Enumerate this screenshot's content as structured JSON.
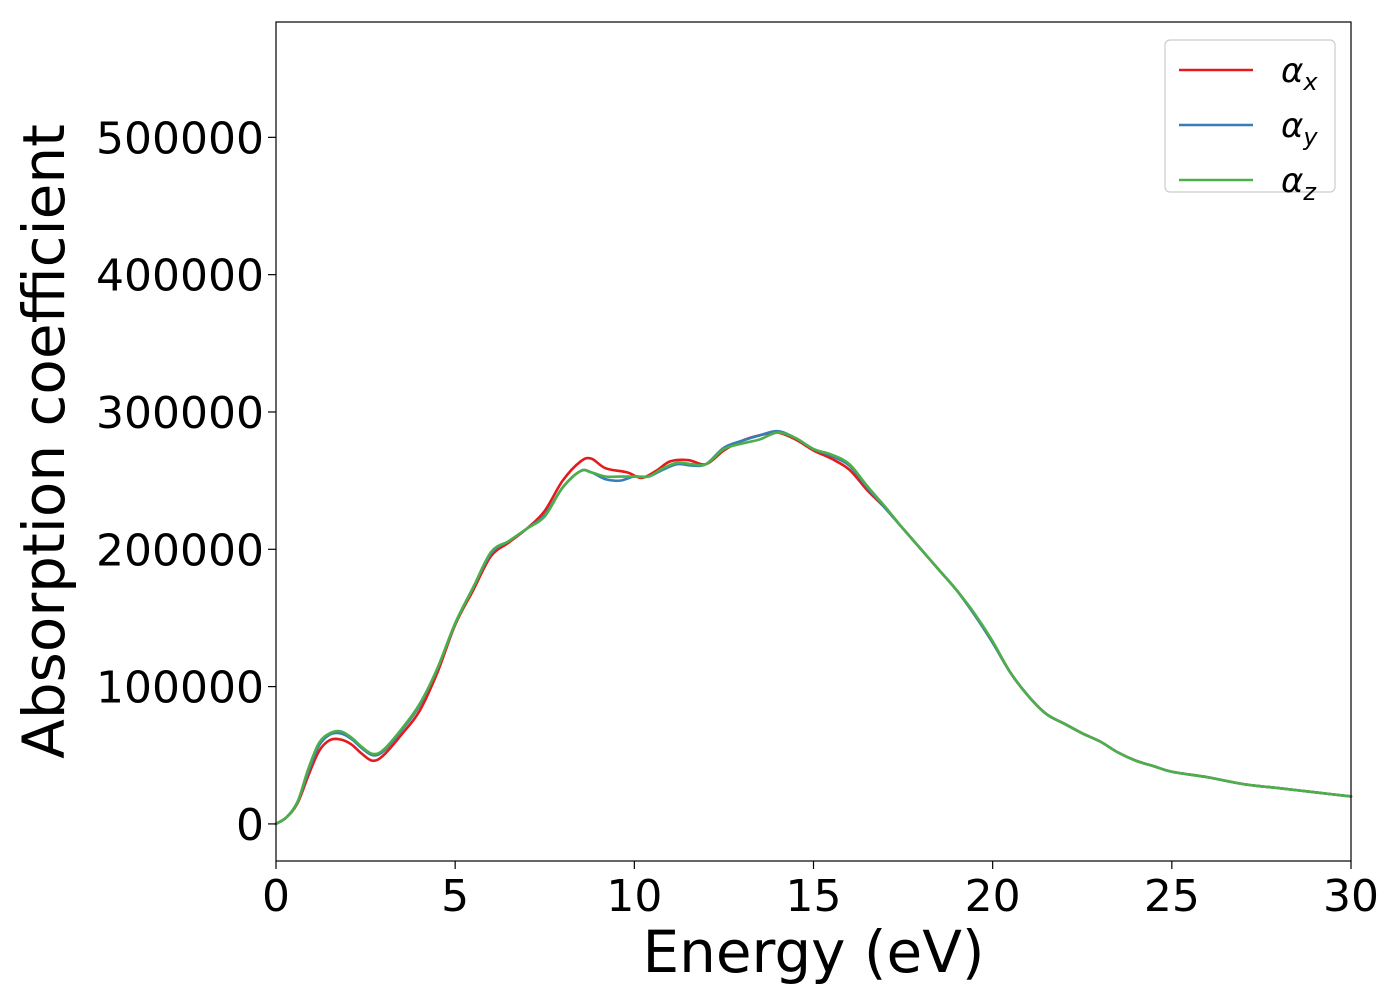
{
  "chart_data": {
    "type": "line",
    "title": "",
    "xlabel": "Energy (eV)",
    "ylabel": "Absorption coefficient",
    "xlim": [
      0,
      30
    ],
    "ylim": [
      -27000,
      584000
    ],
    "xticks": [
      0,
      5,
      10,
      15,
      20,
      25,
      30
    ],
    "yticks": [
      0,
      100000,
      200000,
      300000,
      400000,
      500000
    ],
    "xtick_labels": [
      "0",
      "5",
      "10",
      "15",
      "20",
      "25",
      "30"
    ],
    "ytick_labels": [
      "0",
      "100000",
      "200000",
      "300000",
      "400000",
      "500000"
    ],
    "grid": false,
    "legend_position": "top-right",
    "series": [
      {
        "name": "αx",
        "label_base": "α",
        "label_sub": "x",
        "color": "#e41a1c",
        "points": [
          [
            0,
            0
          ],
          [
            0.3,
            5000
          ],
          [
            0.6,
            15000
          ],
          [
            0.9,
            35000
          ],
          [
            1.2,
            53000
          ],
          [
            1.5,
            61000
          ],
          [
            1.8,
            61500
          ],
          [
            2.1,
            58000
          ],
          [
            2.4,
            51000
          ],
          [
            2.7,
            46000
          ],
          [
            3.0,
            50000
          ],
          [
            3.5,
            65000
          ],
          [
            4.0,
            82000
          ],
          [
            4.5,
            110000
          ],
          [
            5.0,
            145000
          ],
          [
            5.5,
            170000
          ],
          [
            6.0,
            195000
          ],
          [
            6.5,
            205000
          ],
          [
            7.0,
            215000
          ],
          [
            7.5,
            228000
          ],
          [
            8.0,
            250000
          ],
          [
            8.5,
            264000
          ],
          [
            8.8,
            266000
          ],
          [
            9.2,
            259000
          ],
          [
            9.8,
            256000
          ],
          [
            10.2,
            252000
          ],
          [
            10.6,
            257000
          ],
          [
            11.0,
            264000
          ],
          [
            11.5,
            265000
          ],
          [
            12.0,
            262000
          ],
          [
            12.5,
            272000
          ],
          [
            13.0,
            279000
          ],
          [
            13.5,
            283000
          ],
          [
            14.0,
            285000
          ],
          [
            14.5,
            280000
          ],
          [
            15.0,
            272000
          ],
          [
            15.5,
            266000
          ],
          [
            16.0,
            258000
          ],
          [
            16.5,
            243000
          ],
          [
            17.0,
            230000
          ],
          [
            17.5,
            215000
          ],
          [
            18.0,
            200000
          ],
          [
            18.5,
            185000
          ],
          [
            19.0,
            170000
          ],
          [
            19.5,
            152000
          ],
          [
            20.0,
            132000
          ],
          [
            20.5,
            110000
          ],
          [
            21.0,
            93000
          ],
          [
            21.5,
            80000
          ],
          [
            22.0,
            73000
          ],
          [
            22.5,
            66000
          ],
          [
            23.0,
            60000
          ],
          [
            23.5,
            52000
          ],
          [
            24.0,
            46000
          ],
          [
            24.5,
            42000
          ],
          [
            25.0,
            38000
          ],
          [
            26.0,
            34000
          ],
          [
            27.0,
            29000
          ],
          [
            28.0,
            26000
          ],
          [
            29.0,
            23000
          ],
          [
            30.0,
            20000
          ]
        ]
      },
      {
        "name": "αy",
        "label_base": "α",
        "label_sub": "y",
        "color": "#377eb8",
        "points": [
          [
            0,
            0
          ],
          [
            0.3,
            5000
          ],
          [
            0.6,
            16000
          ],
          [
            0.9,
            38000
          ],
          [
            1.2,
            57000
          ],
          [
            1.5,
            65000
          ],
          [
            1.8,
            66000
          ],
          [
            2.1,
            62000
          ],
          [
            2.4,
            55000
          ],
          [
            2.7,
            50000
          ],
          [
            3.0,
            53000
          ],
          [
            3.5,
            68000
          ],
          [
            4.0,
            86000
          ],
          [
            4.5,
            113000
          ],
          [
            5.0,
            146000
          ],
          [
            5.5,
            172000
          ],
          [
            6.0,
            197000
          ],
          [
            6.5,
            206000
          ],
          [
            7.0,
            215000
          ],
          [
            7.5,
            225000
          ],
          [
            8.0,
            245000
          ],
          [
            8.5,
            257000
          ],
          [
            8.8,
            256000
          ],
          [
            9.2,
            251000
          ],
          [
            9.6,
            250000
          ],
          [
            10.0,
            253000
          ],
          [
            10.4,
            253000
          ],
          [
            10.8,
            258000
          ],
          [
            11.2,
            262000
          ],
          [
            11.6,
            261000
          ],
          [
            12.0,
            262000
          ],
          [
            12.5,
            274000
          ],
          [
            13.0,
            279000
          ],
          [
            13.5,
            283000
          ],
          [
            14.0,
            286000
          ],
          [
            14.5,
            281000
          ],
          [
            15.0,
            273000
          ],
          [
            15.5,
            268000
          ],
          [
            16.0,
            261000
          ],
          [
            16.5,
            245000
          ],
          [
            17.0,
            230000
          ],
          [
            17.5,
            215000
          ],
          [
            18.0,
            200000
          ],
          [
            18.5,
            185000
          ],
          [
            19.0,
            170000
          ],
          [
            19.5,
            152000
          ],
          [
            20.0,
            132000
          ],
          [
            20.5,
            110000
          ],
          [
            21.0,
            93000
          ],
          [
            21.5,
            80000
          ],
          [
            22.0,
            73000
          ],
          [
            22.5,
            66000
          ],
          [
            23.0,
            60000
          ],
          [
            23.5,
            52000
          ],
          [
            24.0,
            46000
          ],
          [
            24.5,
            42000
          ],
          [
            25.0,
            38000
          ],
          [
            26.0,
            34000
          ],
          [
            27.0,
            29000
          ],
          [
            28.0,
            26000
          ],
          [
            29.0,
            23000
          ],
          [
            30.0,
            20000
          ]
        ]
      },
      {
        "name": "αz",
        "label_base": "α",
        "label_sub": "z",
        "color": "#4daf4a",
        "points": [
          [
            0,
            0
          ],
          [
            0.3,
            5000
          ],
          [
            0.6,
            16000
          ],
          [
            0.9,
            40000
          ],
          [
            1.2,
            59000
          ],
          [
            1.5,
            66000
          ],
          [
            1.8,
            67500
          ],
          [
            2.1,
            63000
          ],
          [
            2.4,
            56000
          ],
          [
            2.7,
            51000
          ],
          [
            3.0,
            54000
          ],
          [
            3.5,
            69000
          ],
          [
            4.0,
            87000
          ],
          [
            4.5,
            113000
          ],
          [
            5.0,
            146000
          ],
          [
            5.5,
            172000
          ],
          [
            6.0,
            198000
          ],
          [
            6.5,
            206000
          ],
          [
            7.0,
            215000
          ],
          [
            7.5,
            224000
          ],
          [
            8.0,
            245000
          ],
          [
            8.5,
            257000
          ],
          [
            8.8,
            256000
          ],
          [
            9.2,
            253000
          ],
          [
            9.6,
            253000
          ],
          [
            10.0,
            253000
          ],
          [
            10.4,
            253000
          ],
          [
            10.8,
            259000
          ],
          [
            11.2,
            263000
          ],
          [
            11.6,
            262000
          ],
          [
            12.0,
            262000
          ],
          [
            12.5,
            273000
          ],
          [
            13.0,
            277000
          ],
          [
            13.5,
            280000
          ],
          [
            14.0,
            285000
          ],
          [
            14.5,
            281000
          ],
          [
            15.0,
            273000
          ],
          [
            15.5,
            269000
          ],
          [
            16.0,
            262000
          ],
          [
            16.5,
            246000
          ],
          [
            17.0,
            231000
          ],
          [
            17.5,
            215000
          ],
          [
            18.0,
            200000
          ],
          [
            18.5,
            185000
          ],
          [
            19.0,
            170000
          ],
          [
            19.5,
            153000
          ],
          [
            20.0,
            133000
          ],
          [
            20.5,
            110000
          ],
          [
            21.0,
            93000
          ],
          [
            21.5,
            80000
          ],
          [
            22.0,
            73000
          ],
          [
            22.5,
            66000
          ],
          [
            23.0,
            60000
          ],
          [
            23.5,
            52000
          ],
          [
            24.0,
            46000
          ],
          [
            24.5,
            42000
          ],
          [
            25.0,
            38000
          ],
          [
            26.0,
            34000
          ],
          [
            27.0,
            29000
          ],
          [
            28.0,
            26000
          ],
          [
            29.0,
            23000
          ],
          [
            30.0,
            20000
          ]
        ]
      }
    ]
  }
}
